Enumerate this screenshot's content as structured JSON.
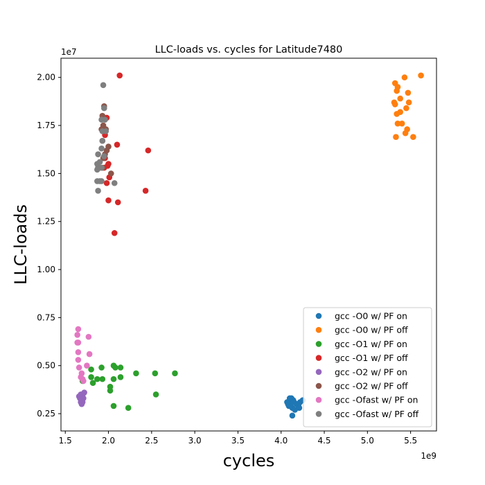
{
  "chart_data": {
    "type": "scatter",
    "title": "LLC-loads vs. cycles for Latitude7480",
    "xlabel": "cycles",
    "ylabel": "LLC-loads",
    "x_multiplier": "1e9",
    "y_multiplier": "1e7",
    "xlim": [
      1.45,
      5.8
    ],
    "ylim": [
      0.16,
      2.1
    ],
    "x_ticks": [
      "1.5",
      "2.0",
      "2.5",
      "3.0",
      "3.5",
      "4.0",
      "4.5",
      "5.0",
      "5.5"
    ],
    "y_ticks": [
      "0.25",
      "0.50",
      "0.75",
      "1.00",
      "1.25",
      "1.50",
      "1.75",
      "2.00"
    ],
    "legend_position": "lower-right",
    "series": [
      {
        "name": "gcc -O0 w/ PF on",
        "color": "#1f77b4",
        "points": [
          [
            4.08,
            0.3
          ],
          [
            4.1,
            0.32
          ],
          [
            4.12,
            0.33
          ],
          [
            4.15,
            0.31
          ],
          [
            4.09,
            0.29
          ],
          [
            4.13,
            0.28
          ],
          [
            4.18,
            0.3
          ],
          [
            4.2,
            0.29
          ],
          [
            4.22,
            0.31
          ],
          [
            4.11,
            0.3
          ],
          [
            4.14,
            0.32
          ],
          [
            4.25,
            0.32
          ],
          [
            4.07,
            0.31
          ],
          [
            4.16,
            0.27
          ],
          [
            4.21,
            0.28
          ],
          [
            4.13,
            0.24
          ],
          [
            4.1,
            0.33
          ]
        ]
      },
      {
        "name": "gcc -O0 w/ PF off",
        "color": "#ff7f0e",
        "points": [
          [
            5.62,
            2.01
          ],
          [
            5.43,
            2.0
          ],
          [
            5.32,
            1.97
          ],
          [
            5.35,
            1.95
          ],
          [
            5.34,
            1.93
          ],
          [
            5.47,
            1.92
          ],
          [
            5.38,
            1.89
          ],
          [
            5.31,
            1.87
          ],
          [
            5.48,
            1.87
          ],
          [
            5.32,
            1.86
          ],
          [
            5.45,
            1.84
          ],
          [
            5.38,
            1.82
          ],
          [
            5.34,
            1.81
          ],
          [
            5.4,
            1.76
          ],
          [
            5.35,
            1.76
          ],
          [
            5.46,
            1.73
          ],
          [
            5.44,
            1.71
          ],
          [
            5.53,
            1.69
          ],
          [
            5.33,
            1.69
          ]
        ]
      },
      {
        "name": "gcc -O1 w/ PF on",
        "color": "#2ca02c",
        "points": [
          [
            2.77,
            0.46
          ],
          [
            2.54,
            0.46
          ],
          [
            2.32,
            0.46
          ],
          [
            2.55,
            0.35
          ],
          [
            2.06,
            0.5
          ],
          [
            2.08,
            0.49
          ],
          [
            2.14,
            0.49
          ],
          [
            1.92,
            0.49
          ],
          [
            1.8,
            0.48
          ],
          [
            2.14,
            0.44
          ],
          [
            1.8,
            0.44
          ],
          [
            1.87,
            0.43
          ],
          [
            1.93,
            0.43
          ],
          [
            2.06,
            0.43
          ],
          [
            1.82,
            0.41
          ],
          [
            1.7,
            0.42
          ],
          [
            2.02,
            0.39
          ],
          [
            2.02,
            0.37
          ],
          [
            2.06,
            0.29
          ],
          [
            2.23,
            0.28
          ]
        ]
      },
      {
        "name": "gcc -O1 w/ PF off",
        "color": "#d62728",
        "points": [
          [
            2.13,
            2.01
          ],
          [
            1.98,
            1.79
          ],
          [
            1.96,
            1.7
          ],
          [
            2.1,
            1.65
          ],
          [
            2.46,
            1.62
          ],
          [
            1.96,
            1.58
          ],
          [
            2.0,
            1.55
          ],
          [
            1.99,
            1.54
          ],
          [
            1.95,
            1.53
          ],
          [
            2.01,
            1.48
          ],
          [
            1.98,
            1.45
          ],
          [
            2.43,
            1.41
          ],
          [
            2.0,
            1.36
          ],
          [
            2.11,
            1.35
          ],
          [
            2.07,
            1.19
          ]
        ]
      },
      {
        "name": "gcc -O2 w/ PF off",
        "color": "#8c564b",
        "points": [
          [
            1.95,
            1.85
          ],
          [
            1.93,
            1.8
          ],
          [
            1.94,
            1.75
          ],
          [
            1.92,
            1.73
          ],
          [
            1.97,
            1.73
          ],
          [
            1.93,
            1.67
          ],
          [
            2.0,
            1.64
          ],
          [
            1.98,
            1.62
          ],
          [
            1.96,
            1.6
          ],
          [
            1.94,
            1.58
          ],
          [
            1.93,
            1.53
          ],
          [
            2.03,
            1.5
          ]
        ]
      },
      {
        "name": "gcc -O2 w/ PF on",
        "color": "#9467bd",
        "points": [
          [
            1.68,
            0.35
          ],
          [
            1.7,
            0.34
          ],
          [
            1.67,
            0.33
          ],
          [
            1.71,
            0.33
          ],
          [
            1.69,
            0.32
          ],
          [
            1.68,
            0.31
          ],
          [
            1.7,
            0.31
          ],
          [
            1.72,
            0.36
          ],
          [
            1.66,
            0.34
          ],
          [
            1.69,
            0.3
          ]
        ]
      },
      {
        "name": "gcc -Ofast w/ PF on",
        "color": "#e377c2",
        "points": [
          [
            1.65,
            0.69
          ],
          [
            1.64,
            0.66
          ],
          [
            1.77,
            0.65
          ],
          [
            1.64,
            0.62
          ],
          [
            1.65,
            0.62
          ],
          [
            1.65,
            0.57
          ],
          [
            1.78,
            0.56
          ],
          [
            1.65,
            0.53
          ],
          [
            1.75,
            0.5
          ],
          [
            1.66,
            0.49
          ],
          [
            1.69,
            0.46
          ],
          [
            1.68,
            0.44
          ],
          [
            1.7,
            0.43
          ],
          [
            1.71,
            0.42
          ]
        ]
      },
      {
        "name": "gcc -Ofast w/ PF off",
        "color": "#7f7f7f",
        "points": [
          [
            1.94,
            1.96
          ],
          [
            1.95,
            1.84
          ],
          [
            1.92,
            1.78
          ],
          [
            1.96,
            1.78
          ],
          [
            1.93,
            1.72
          ],
          [
            1.97,
            1.72
          ],
          [
            1.93,
            1.67
          ],
          [
            1.92,
            1.63
          ],
          [
            1.88,
            1.6
          ],
          [
            1.95,
            1.59
          ],
          [
            1.9,
            1.56
          ],
          [
            1.87,
            1.55
          ],
          [
            1.88,
            1.53
          ],
          [
            1.87,
            1.52
          ],
          [
            1.9,
            1.53
          ],
          [
            1.92,
            1.53
          ],
          [
            1.87,
            1.46
          ],
          [
            1.9,
            1.46
          ],
          [
            1.92,
            1.46
          ],
          [
            2.07,
            1.45
          ],
          [
            1.88,
            1.41
          ]
        ]
      }
    ]
  }
}
